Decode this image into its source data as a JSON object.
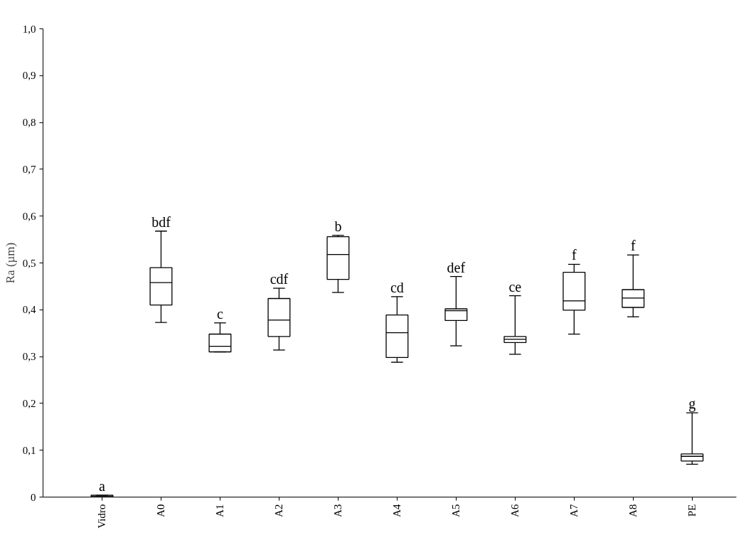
{
  "chart_data": {
    "type": "box",
    "ylabel": "Ra (µm)",
    "categories": [
      "Vidro",
      "A0",
      "A1",
      "A2",
      "A3",
      "A4",
      "A5",
      "A6",
      "A7",
      "A8",
      "PE"
    ],
    "boxes": [
      {
        "low": 0,
        "q1": 0,
        "median": 0.002,
        "q3": 0.004,
        "high": 0.004
      },
      {
        "low": 0.373,
        "q1": 0.41,
        "median": 0.458,
        "q3": 0.49,
        "high": 0.568
      },
      {
        "low": 0.31,
        "q1": 0.31,
        "median": 0.322,
        "q3": 0.348,
        "high": 0.372
      },
      {
        "low": 0.314,
        "q1": 0.343,
        "median": 0.378,
        "q3": 0.424,
        "high": 0.446
      },
      {
        "low": 0.437,
        "q1": 0.465,
        "median": 0.518,
        "q3": 0.556,
        "high": 0.559
      },
      {
        "low": 0.288,
        "q1": 0.298,
        "median": 0.351,
        "q3": 0.389,
        "high": 0.428
      },
      {
        "low": 0.323,
        "q1": 0.377,
        "median": 0.398,
        "q3": 0.402,
        "high": 0.471
      },
      {
        "low": 0.305,
        "q1": 0.33,
        "median": 0.337,
        "q3": 0.343,
        "high": 0.43
      },
      {
        "low": 0.348,
        "q1": 0.399,
        "median": 0.419,
        "q3": 0.48,
        "high": 0.497
      },
      {
        "low": 0.385,
        "q1": 0.405,
        "median": 0.425,
        "q3": 0.443,
        "high": 0.517
      },
      {
        "low": 0.07,
        "q1": 0.077,
        "median": 0.087,
        "q3": 0.092,
        "high": 0.18
      }
    ],
    "ylim": [
      0,
      1
    ],
    "yticks": [
      0,
      {
        "value": 0.1,
        "label": "0,1"
      },
      {
        "value": 0.2,
        "label": "0,2"
      },
      {
        "value": 0.3,
        "label": "0,3"
      },
      {
        "value": 0.4,
        "label": "0,4"
      },
      {
        "value": 0.5,
        "label": "0,5"
      },
      {
        "value": 0.6,
        "label": "0,6"
      },
      {
        "value": 0.7,
        "label": "0,7"
      },
      {
        "value": 0.8,
        "label": "0,8"
      },
      {
        "value": 0.9,
        "label": "0,9"
      },
      {
        "value": 1,
        "label": "1,0"
      }
    ],
    "annotations": [
      {
        "text": "a",
        "x": "Vidro",
        "y": 0.004
      },
      {
        "text": "bdf",
        "x": "A0",
        "y": 0.568
      },
      {
        "text": "c",
        "x": "A1",
        "y": 0.372
      },
      {
        "text": "cdf",
        "x": "A2",
        "y": 0.446
      },
      {
        "text": "b",
        "x": "A3",
        "y": 0.559
      },
      {
        "text": "cd",
        "x": "A4",
        "y": 0.428
      },
      {
        "text": "def",
        "x": "A5",
        "y": 0.471
      },
      {
        "text": "ce",
        "x": "A6",
        "y": 0.43
      },
      {
        "text": "f",
        "x": "A7",
        "y": 0.497
      },
      {
        "text": "f",
        "x": "A8",
        "y": 0.517
      },
      {
        "text": "g",
        "x": "PE",
        "y": 0.18
      }
    ],
    "grid": false
  }
}
